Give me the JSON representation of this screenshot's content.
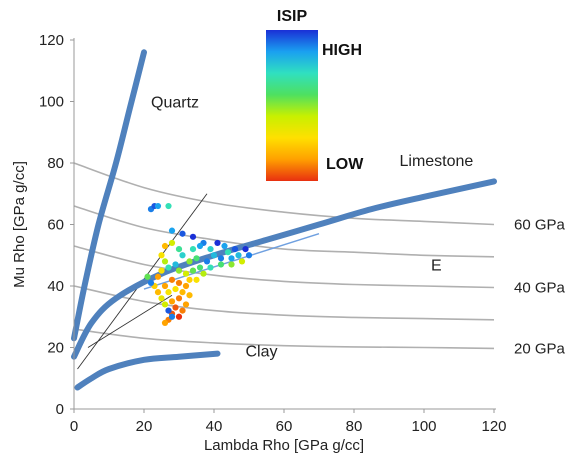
{
  "chart_data": {
    "type": "scatter",
    "xlabel": "Lambda Rho [GPa g/cc]",
    "ylabel": "Mu Rho [GPa g/cc]",
    "xlim": [
      0,
      120
    ],
    "ylim": [
      0,
      120
    ],
    "x_ticks": [
      0,
      20,
      40,
      60,
      80,
      100,
      120
    ],
    "y_ticks": [
      0,
      20,
      40,
      60,
      80,
      100,
      120
    ],
    "grid": false,
    "colorbar": {
      "title": "ISIP",
      "high_label": "HIGH",
      "low_label": "LOW",
      "colors_high_to_low": [
        "#1a2fd6",
        "#1aa0f0",
        "#30e0c0",
        "#4ee060",
        "#c8f000",
        "#ffe000",
        "#ffa000",
        "#e83010"
      ]
    },
    "lithology_lines": [
      {
        "name": "Quartz",
        "color": "#4f81bd",
        "points": [
          [
            0,
            23
          ],
          [
            3,
            40
          ],
          [
            7,
            60
          ],
          [
            12,
            80
          ],
          [
            16,
            98
          ],
          [
            20,
            116
          ]
        ]
      },
      {
        "name": "Limestone",
        "color": "#4f81bd",
        "points": [
          [
            0,
            17
          ],
          [
            5,
            28
          ],
          [
            12,
            36
          ],
          [
            25,
            44
          ],
          [
            40,
            50
          ],
          [
            55,
            55
          ],
          [
            70,
            60
          ],
          [
            85,
            65
          ],
          [
            100,
            69
          ],
          [
            120,
            74
          ]
        ]
      },
      {
        "name": "Clay",
        "color": "#4f81bd",
        "points": [
          [
            1,
            7
          ],
          [
            5,
            10
          ],
          [
            10,
            13
          ],
          [
            20,
            16
          ],
          [
            30,
            17
          ],
          [
            41,
            18
          ]
        ]
      }
    ],
    "modulus_contours": [
      {
        "label": "60 GPa",
        "points": [
          [
            0,
            80
          ],
          [
            20,
            72
          ],
          [
            40,
            67
          ],
          [
            60,
            64
          ],
          [
            80,
            62
          ],
          [
            100,
            61
          ],
          [
            120,
            60
          ]
        ]
      },
      {
        "label": "",
        "points": [
          [
            0,
            66
          ],
          [
            20,
            59
          ],
          [
            40,
            55
          ],
          [
            60,
            52
          ],
          [
            80,
            51
          ],
          [
            100,
            50
          ],
          [
            120,
            49.5
          ]
        ]
      },
      {
        "label": "40 GPa",
        "points": [
          [
            0,
            53
          ],
          [
            20,
            47
          ],
          [
            40,
            43.5
          ],
          [
            60,
            41.5
          ],
          [
            80,
            40.5
          ],
          [
            100,
            40
          ],
          [
            120,
            39.5
          ]
        ]
      },
      {
        "label": "",
        "points": [
          [
            0,
            40
          ],
          [
            20,
            35
          ],
          [
            40,
            32
          ],
          [
            60,
            30.5
          ],
          [
            80,
            29.8
          ],
          [
            100,
            29.4
          ],
          [
            120,
            29
          ]
        ]
      },
      {
        "label": "20 GPa",
        "points": [
          [
            0,
            26
          ],
          [
            20,
            23
          ],
          [
            40,
            21.5
          ],
          [
            60,
            20.6
          ],
          [
            80,
            20.2
          ],
          [
            100,
            20
          ],
          [
            120,
            19.7
          ]
        ]
      }
    ],
    "trend_lines": [
      {
        "color": "#333333",
        "points": [
          [
            1,
            13
          ],
          [
            38,
            70
          ]
        ]
      },
      {
        "color": "#333333",
        "points": [
          [
            4,
            20
          ],
          [
            28,
            37
          ]
        ]
      },
      {
        "color": "#6fa0e0",
        "points": [
          [
            20,
            39
          ],
          [
            70,
            57
          ]
        ]
      }
    ],
    "annotations": [
      {
        "text": "Quartz",
        "x": 22,
        "y": 98
      },
      {
        "text": "Limestone",
        "x": 93,
        "y": 79
      },
      {
        "text": "E",
        "x": 102,
        "y": 45
      },
      {
        "text": "Clay",
        "x": 49,
        "y": 17
      }
    ],
    "points": [
      {
        "x": 22,
        "y": 65,
        "c": 0.9
      },
      {
        "x": 23,
        "y": 66,
        "c": 0.95
      },
      {
        "x": 24,
        "y": 66,
        "c": 0.85
      },
      {
        "x": 27,
        "y": 66,
        "c": 0.7
      },
      {
        "x": 28,
        "y": 58,
        "c": 0.85
      },
      {
        "x": 31,
        "y": 57,
        "c": 0.95
      },
      {
        "x": 34,
        "y": 56,
        "c": 1.0
      },
      {
        "x": 37,
        "y": 54,
        "c": 0.9
      },
      {
        "x": 41,
        "y": 54,
        "c": 1.0
      },
      {
        "x": 43,
        "y": 53,
        "c": 0.85
      },
      {
        "x": 46,
        "y": 52,
        "c": 0.95
      },
      {
        "x": 49,
        "y": 52,
        "c": 1.0
      },
      {
        "x": 50,
        "y": 50,
        "c": 0.9
      },
      {
        "x": 47,
        "y": 50,
        "c": 0.8
      },
      {
        "x": 44,
        "y": 51,
        "c": 0.7
      },
      {
        "x": 40,
        "y": 50,
        "c": 0.8
      },
      {
        "x": 38,
        "y": 48,
        "c": 0.9
      },
      {
        "x": 35,
        "y": 49,
        "c": 0.6
      },
      {
        "x": 33,
        "y": 48,
        "c": 0.5
      },
      {
        "x": 31,
        "y": 50,
        "c": 0.75
      },
      {
        "x": 29,
        "y": 47,
        "c": 0.8
      },
      {
        "x": 30,
        "y": 52,
        "c": 0.65
      },
      {
        "x": 28,
        "y": 54,
        "c": 0.4
      },
      {
        "x": 26,
        "y": 53,
        "c": 0.2
      },
      {
        "x": 25,
        "y": 50,
        "c": 0.3
      },
      {
        "x": 26,
        "y": 48,
        "c": 0.45
      },
      {
        "x": 27,
        "y": 46,
        "c": 0.7
      },
      {
        "x": 25,
        "y": 45,
        "c": 0.3
      },
      {
        "x": 30,
        "y": 45,
        "c": 0.5
      },
      {
        "x": 32,
        "y": 44,
        "c": 0.4
      },
      {
        "x": 34,
        "y": 45,
        "c": 0.55
      },
      {
        "x": 36,
        "y": 46,
        "c": 0.6
      },
      {
        "x": 39,
        "y": 46,
        "c": 0.7
      },
      {
        "x": 42,
        "y": 47,
        "c": 0.6
      },
      {
        "x": 45,
        "y": 47,
        "c": 0.5
      },
      {
        "x": 48,
        "y": 48,
        "c": 0.4
      },
      {
        "x": 23,
        "y": 40,
        "c": 0.25
      },
      {
        "x": 24,
        "y": 38,
        "c": 0.2
      },
      {
        "x": 26,
        "y": 40,
        "c": 0.15
      },
      {
        "x": 28,
        "y": 42,
        "c": 0.1
      },
      {
        "x": 30,
        "y": 41,
        "c": 0.1
      },
      {
        "x": 32,
        "y": 40,
        "c": 0.15
      },
      {
        "x": 27,
        "y": 38,
        "c": 0.3
      },
      {
        "x": 25,
        "y": 36,
        "c": 0.35
      },
      {
        "x": 26,
        "y": 34,
        "c": 0.4
      },
      {
        "x": 28,
        "y": 35,
        "c": 0.15
      },
      {
        "x": 30,
        "y": 36,
        "c": 0.1
      },
      {
        "x": 31,
        "y": 38,
        "c": 0.2
      },
      {
        "x": 29,
        "y": 33,
        "c": 0.05
      },
      {
        "x": 31,
        "y": 32,
        "c": 0.1
      },
      {
        "x": 28,
        "y": 31,
        "c": 0.05
      },
      {
        "x": 27,
        "y": 29,
        "c": 0.1
      },
      {
        "x": 26,
        "y": 28,
        "c": 0.15
      },
      {
        "x": 30,
        "y": 30,
        "c": 0.0
      },
      {
        "x": 32,
        "y": 34,
        "c": 0.15
      },
      {
        "x": 33,
        "y": 37,
        "c": 0.2
      },
      {
        "x": 27,
        "y": 32,
        "c": 0.95
      },
      {
        "x": 28,
        "y": 30,
        "c": 0.9
      },
      {
        "x": 22,
        "y": 41,
        "c": 0.9
      },
      {
        "x": 21,
        "y": 43,
        "c": 0.55
      },
      {
        "x": 24,
        "y": 43,
        "c": 0.15
      },
      {
        "x": 35,
        "y": 42,
        "c": 0.3
      },
      {
        "x": 37,
        "y": 44,
        "c": 0.45
      },
      {
        "x": 34,
        "y": 52,
        "c": 0.7
      },
      {
        "x": 36,
        "y": 53,
        "c": 0.85
      },
      {
        "x": 39,
        "y": 52,
        "c": 0.75
      },
      {
        "x": 42,
        "y": 49,
        "c": 0.9
      },
      {
        "x": 45,
        "y": 49,
        "c": 0.85
      },
      {
        "x": 33,
        "y": 42,
        "c": 0.25
      },
      {
        "x": 29,
        "y": 39,
        "c": 0.3
      }
    ]
  }
}
